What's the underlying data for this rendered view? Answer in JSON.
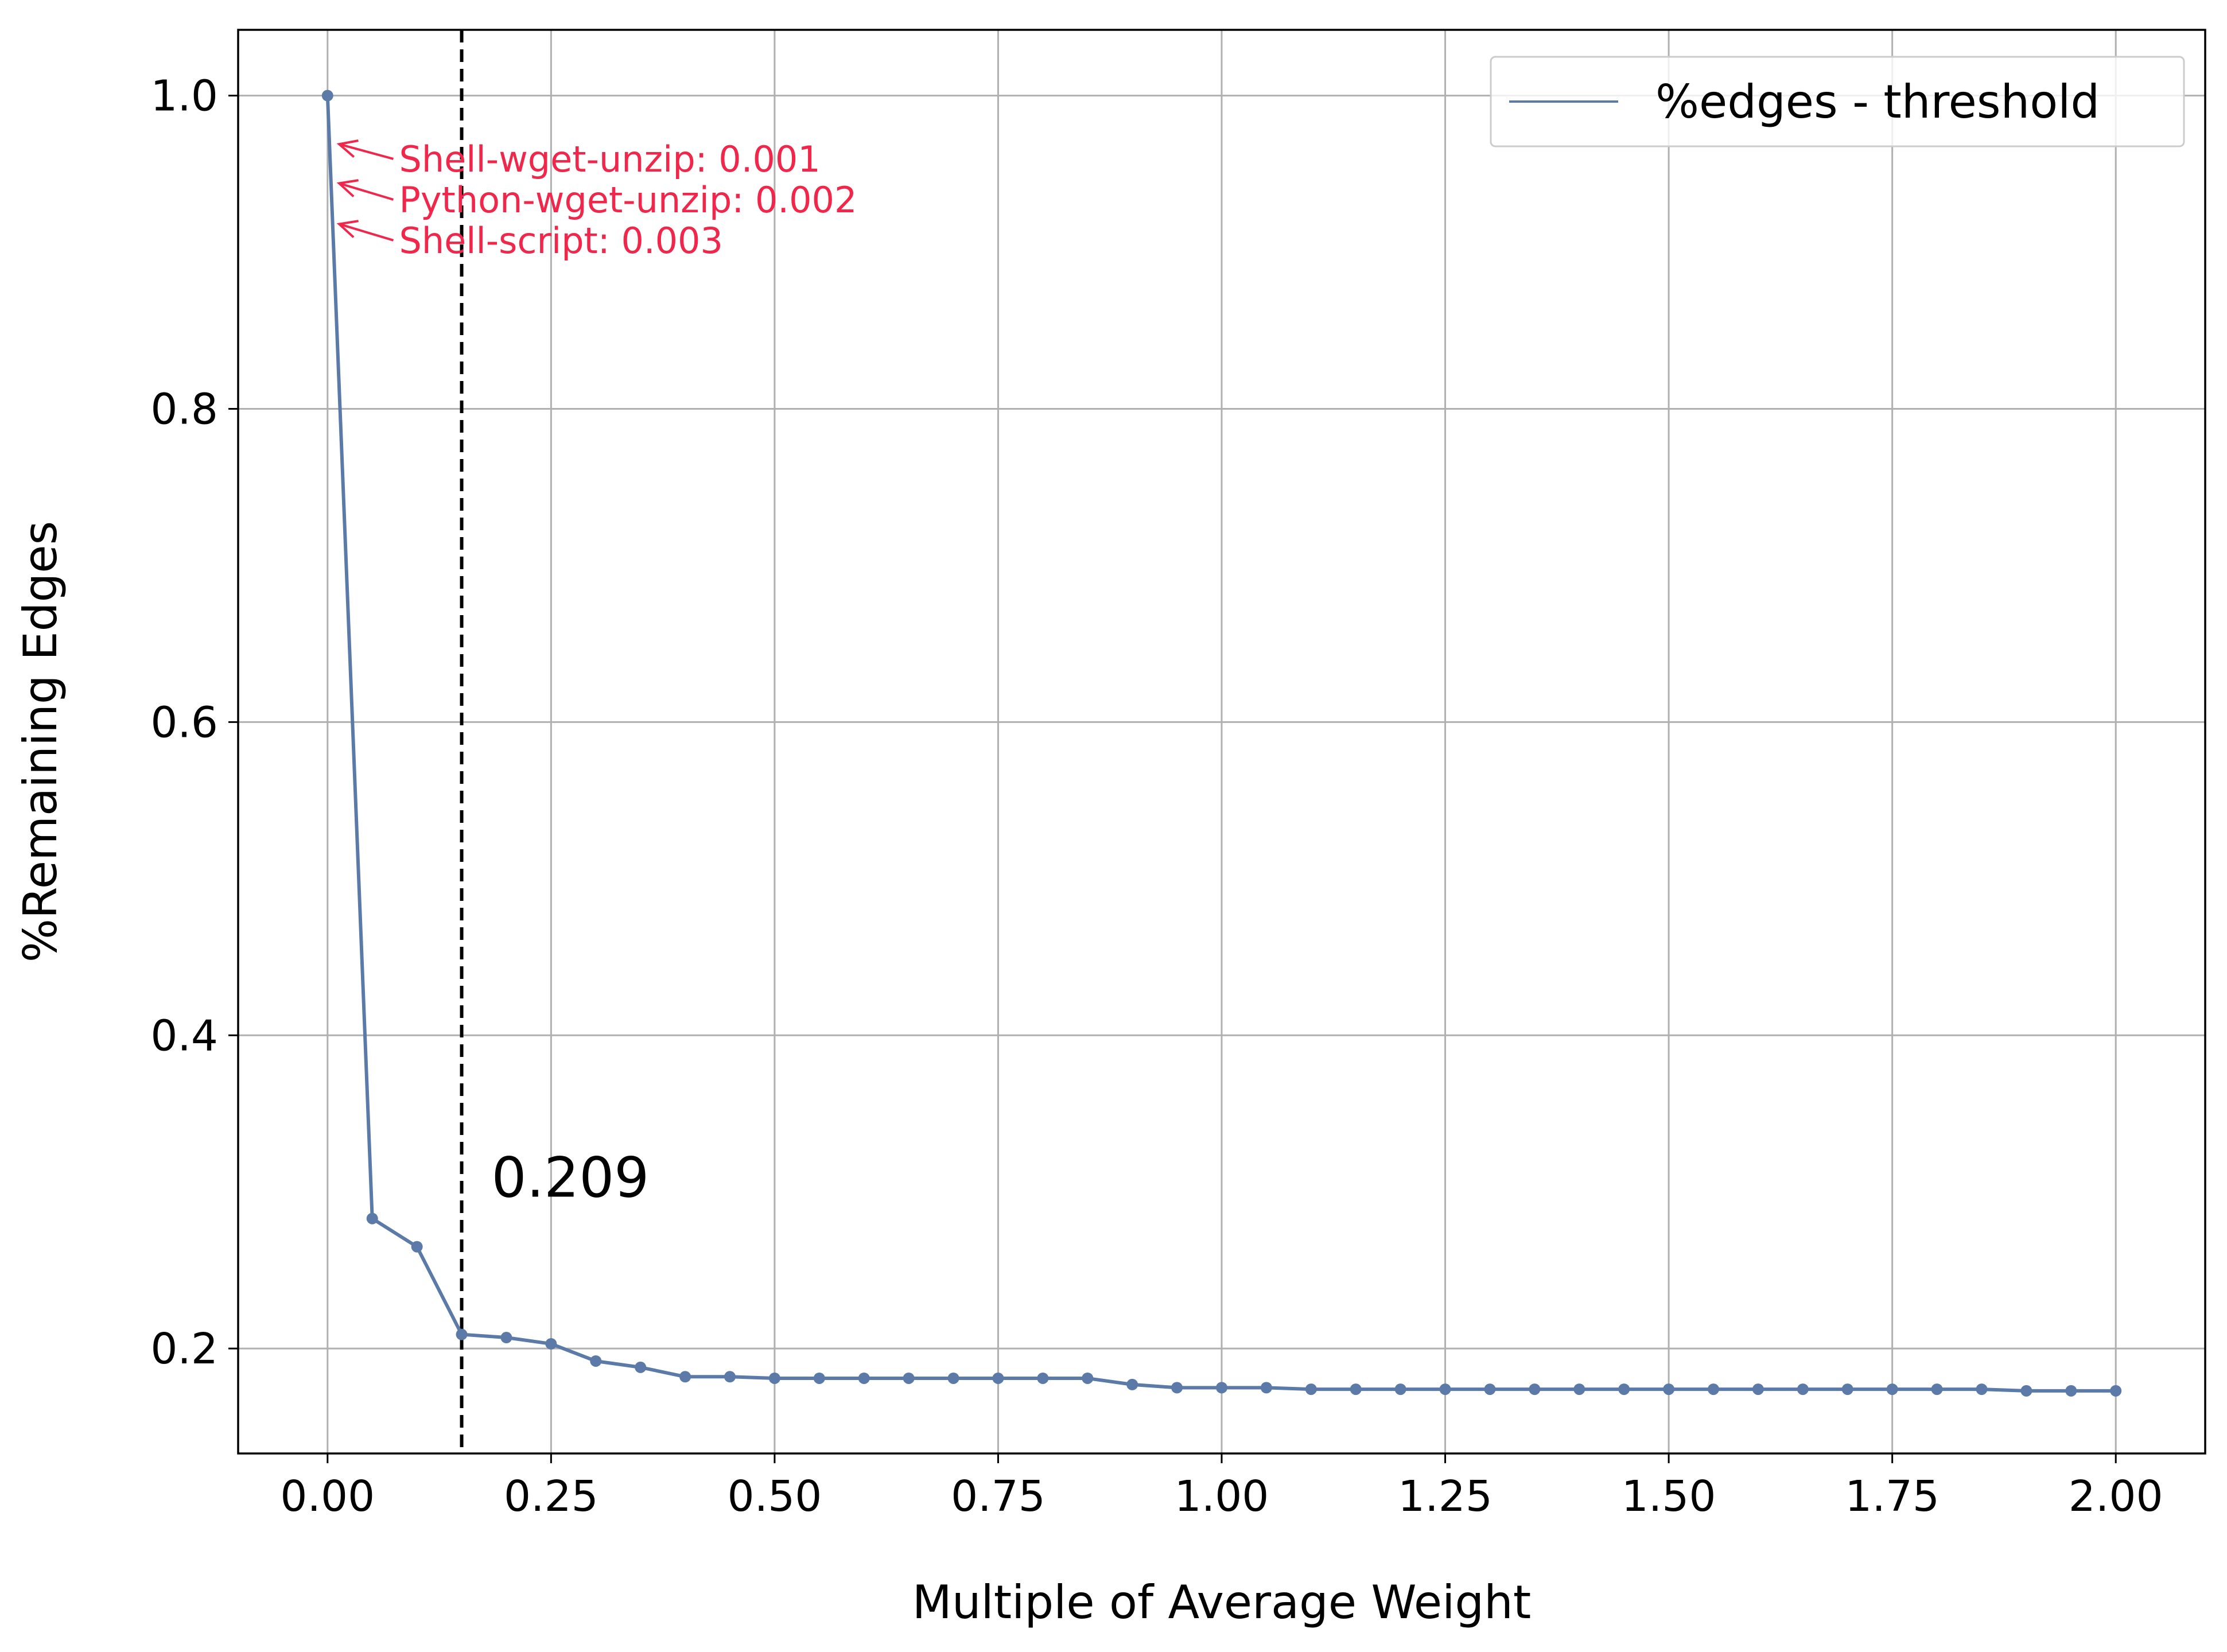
{
  "chart_data": {
    "type": "line",
    "xlabel": "Multiple of Average Weight",
    "ylabel": "%Remaining Edges",
    "xlim": [
      -0.1,
      2.1
    ],
    "ylim": [
      0.133,
      1.042
    ],
    "xticks": [
      "0.00",
      "0.25",
      "0.50",
      "0.75",
      "1.00",
      "1.25",
      "1.50",
      "1.75",
      "2.00"
    ],
    "xtick_values": [
      0,
      0.25,
      0.5,
      0.75,
      1.0,
      1.25,
      1.5,
      1.75,
      2.0
    ],
    "yticks": [
      "0.2",
      "0.4",
      "0.6",
      "0.8",
      "1.0"
    ],
    "ytick_values": [
      0.2,
      0.4,
      0.6,
      0.8,
      1.0
    ],
    "grid": true,
    "legend_position": "top-right",
    "series": [
      {
        "name": "%edges - threshold",
        "color": "#5b7aa8",
        "x": [
          0,
          0.05,
          0.1,
          0.15,
          0.2,
          0.25,
          0.3,
          0.35,
          0.4,
          0.45,
          0.5,
          0.55,
          0.6,
          0.65,
          0.7,
          0.75,
          0.8,
          0.85,
          0.9,
          0.95,
          1.0,
          1.05,
          1.1,
          1.15,
          1.2,
          1.25,
          1.3,
          1.35,
          1.4,
          1.45,
          1.5,
          1.55,
          1.6,
          1.65,
          1.7,
          1.75,
          1.8,
          1.85,
          1.9,
          1.95,
          2.0
        ],
        "y": [
          1.0,
          0.283,
          0.265,
          0.209,
          0.207,
          0.203,
          0.192,
          0.188,
          0.182,
          0.182,
          0.181,
          0.181,
          0.181,
          0.181,
          0.181,
          0.181,
          0.181,
          0.181,
          0.177,
          0.175,
          0.175,
          0.175,
          0.174,
          0.174,
          0.174,
          0.174,
          0.174,
          0.174,
          0.174,
          0.174,
          0.174,
          0.174,
          0.174,
          0.174,
          0.174,
          0.174,
          0.174,
          0.174,
          0.173,
          0.173,
          0.173
        ]
      }
    ],
    "vline": {
      "x": 0.15,
      "color": "#000000",
      "style": "dashed"
    },
    "threshold_label": "0.209",
    "annotations": [
      {
        "text": "Shell-wget-unzip: 0.001",
        "target_x": 0.013,
        "target_y": 0.969,
        "text_x": 0.08,
        "text_y": 0.953
      },
      {
        "text": "Python-wget-unzip: 0.002",
        "target_x": 0.013,
        "target_y": 0.944,
        "text_x": 0.08,
        "text_y": 0.927
      },
      {
        "text": "Shell-script: 0.003",
        "target_x": 0.013,
        "target_y": 0.918,
        "text_x": 0.08,
        "text_y": 0.901
      }
    ],
    "annotation_color": "#f0274b"
  }
}
